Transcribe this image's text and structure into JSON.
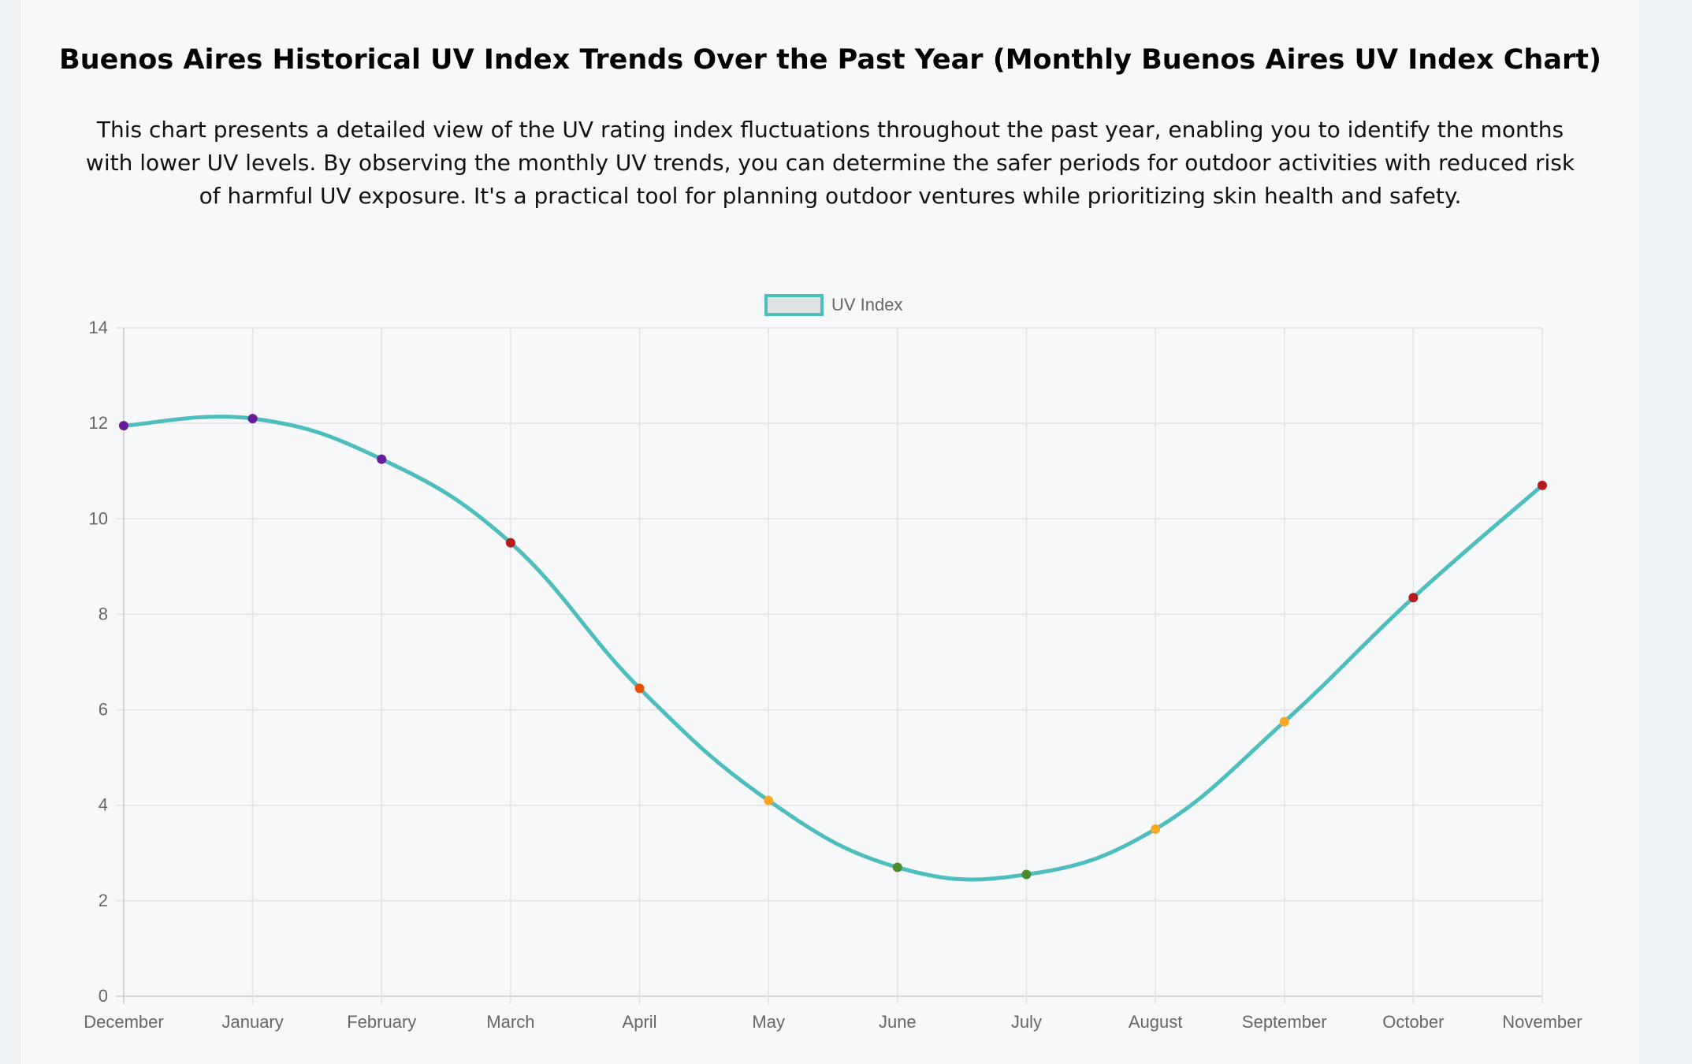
{
  "page": {
    "title": "Buenos Aires Historical UV Index Trends Over the Past Year (Monthly Buenos Aires UV Index Chart)",
    "description": "This chart presents a detailed view of the UV rating index fluctuations throughout the past year, enabling you to identify the months with lower UV levels. By observing the monthly UV trends, you can determine the safer periods for outdoor activities with reduced risk of harmful UV exposure. It's a practical tool for planning outdoor ventures while prioritizing skin health and safety."
  },
  "chart_data": {
    "type": "line",
    "title": "",
    "xlabel": "",
    "ylabel": "",
    "categories": [
      "December",
      "January",
      "February",
      "March",
      "April",
      "May",
      "June",
      "July",
      "August",
      "September",
      "October",
      "November"
    ],
    "series": [
      {
        "name": "UV Index",
        "values": [
          11.95,
          12.1,
          11.25,
          9.5,
          6.45,
          4.1,
          2.7,
          2.55,
          3.5,
          5.75,
          8.35,
          10.7
        ],
        "line_color": "#4dbdbe",
        "point_colors": [
          "#6a1b9a",
          "#6a1b9a",
          "#6a1b9a",
          "#b71c1c",
          "#e65100",
          "#f9a825",
          "#4c8c2b",
          "#4c8c2b",
          "#f9a825",
          "#f9a825",
          "#b71c1c",
          "#b71c1c"
        ]
      }
    ],
    "ylim": [
      0,
      14
    ],
    "yticks": [
      "0",
      "2",
      "4",
      "6",
      "8",
      "10",
      "12",
      "14"
    ],
    "grid": true,
    "legend": {
      "position": "top",
      "box_fill": "#dde3e3",
      "box_border": "#4dbdbe"
    }
  }
}
